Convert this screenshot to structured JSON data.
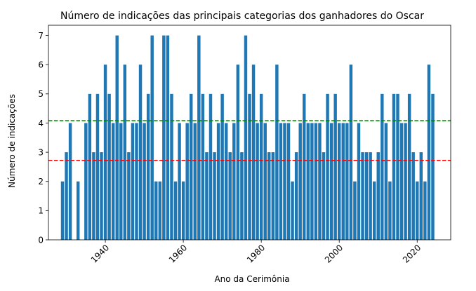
{
  "chart_data": {
    "type": "bar",
    "title": "Número de indicações das principais categorias dos ganhadores do Oscar",
    "xlabel": "Ano da Cerimônia",
    "ylabel": "Número de indicações",
    "xlim": [
      1925.4,
      2028.6
    ],
    "ylim": [
      0,
      7.35
    ],
    "xticks": [
      1940,
      1960,
      1980,
      2000,
      2020
    ],
    "yticks": [
      0,
      1,
      2,
      3,
      4,
      5,
      6,
      7
    ],
    "bar_color": "#1f77b4",
    "x": [
      1929,
      1930,
      1931,
      1932,
      1933,
      1934,
      1935,
      1936,
      1937,
      1938,
      1939,
      1940,
      1941,
      1942,
      1943,
      1944,
      1945,
      1946,
      1947,
      1948,
      1949,
      1950,
      1951,
      1952,
      1953,
      1954,
      1955,
      1956,
      1957,
      1958,
      1959,
      1960,
      1961,
      1962,
      1963,
      1964,
      1965,
      1966,
      1967,
      1968,
      1969,
      1970,
      1971,
      1972,
      1973,
      1974,
      1975,
      1976,
      1977,
      1978,
      1979,
      1980,
      1981,
      1982,
      1983,
      1984,
      1985,
      1986,
      1987,
      1988,
      1989,
      1990,
      1991,
      1992,
      1993,
      1994,
      1995,
      1996,
      1997,
      1998,
      1999,
      2000,
      2001,
      2002,
      2003,
      2004,
      2005,
      2006,
      2007,
      2008,
      2009,
      2010,
      2011,
      2012,
      2013,
      2014,
      2015,
      2016,
      2017,
      2018,
      2019,
      2020,
      2021,
      2022,
      2023,
      2024
    ],
    "values": [
      2,
      3,
      4,
      0,
      2,
      0,
      4,
      5,
      3,
      5,
      3,
      6,
      5,
      4,
      7,
      4,
      6,
      3,
      4,
      4,
      6,
      4,
      5,
      7,
      2,
      2,
      7,
      7,
      5,
      2,
      4,
      2,
      4,
      5,
      4,
      7,
      5,
      3,
      5,
      3,
      4,
      5,
      4,
      3,
      4,
      6,
      3,
      7,
      5,
      6,
      4,
      5,
      4,
      3,
      3,
      6,
      4,
      4,
      4,
      2,
      3,
      4,
      5,
      4,
      4,
      4,
      4,
      3,
      5,
      4,
      5,
      4,
      4,
      4,
      6,
      2,
      4,
      3,
      3,
      3,
      2,
      3,
      5,
      4,
      2,
      5,
      5,
      4,
      4,
      5,
      3,
      2,
      3,
      2,
      6,
      5
    ],
    "reference_lines": [
      {
        "y": 4.08,
        "color": "#008000",
        "style": "dashed"
      },
      {
        "y": 2.72,
        "color": "#ff0000",
        "style": "dashed"
      }
    ],
    "grid": false,
    "legend": "none"
  }
}
